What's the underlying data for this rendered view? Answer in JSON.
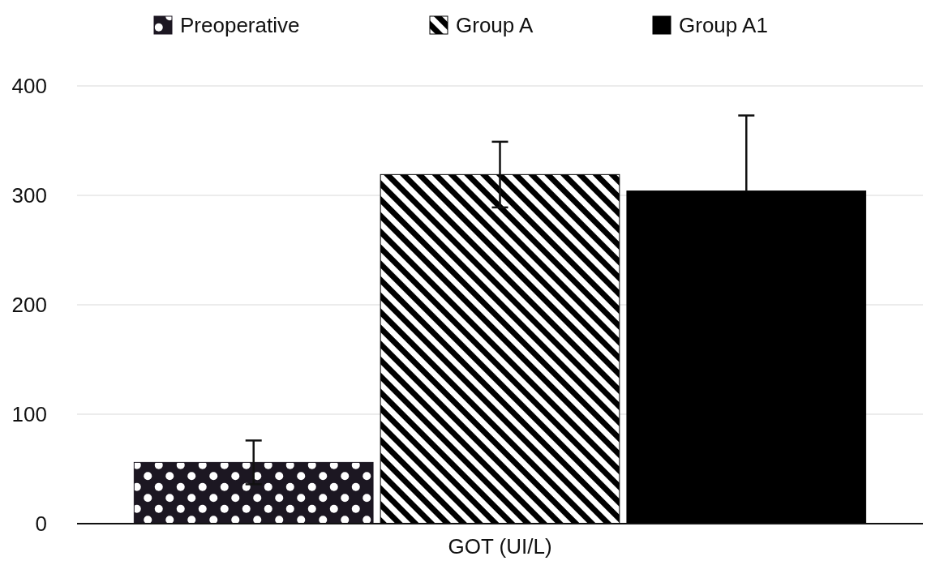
{
  "chart_data": {
    "type": "bar",
    "categories": [
      "GOT (UI/L)"
    ],
    "series": [
      {
        "name": "Preoperative",
        "color": "#1c1722",
        "values": [
          56
        ],
        "errors": [
          20
        ]
      },
      {
        "name": "Group A",
        "color": "#000000",
        "values": [
          319
        ],
        "errors": [
          30
        ]
      },
      {
        "name": "Group A1",
        "color": "#000000",
        "values": [
          304
        ],
        "errors": [
          [
            304,
            373
          ]
        ]
      }
    ],
    "ylim": [
      0,
      400
    ],
    "yticks": [
      0,
      100,
      200,
      300,
      400
    ],
    "grid": "y",
    "legend": "top"
  }
}
